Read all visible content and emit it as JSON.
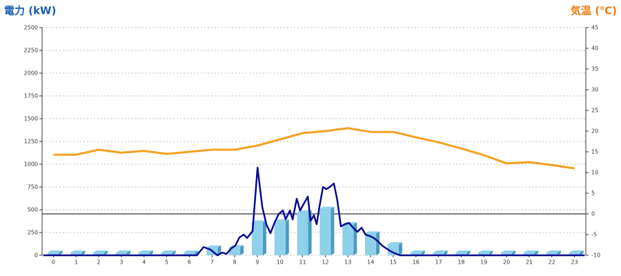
{
  "chart_data": {
    "type": "combo",
    "title_left": "電力 (kW)",
    "title_right": "気温 (℃)",
    "categories": [
      "0",
      "1",
      "2",
      "3",
      "4",
      "5",
      "6",
      "7",
      "8",
      "9",
      "10",
      "11",
      "12",
      "13",
      "14",
      "15",
      "16",
      "17",
      "18",
      "19",
      "20",
      "21",
      "22",
      "23"
    ],
    "xlim": [
      -0.5,
      23.5
    ],
    "ylim": [
      0,
      2500
    ],
    "yticks": [
      0,
      250,
      500,
      750,
      1000,
      1250,
      1500,
      1750,
      2000,
      2250,
      2500
    ],
    "y2lim": [
      -10,
      45
    ],
    "y2ticks": [
      -10,
      -5,
      0,
      5,
      10,
      15,
      20,
      25,
      30,
      35,
      40,
      45
    ],
    "y2_reference": 0,
    "grid": true,
    "series": [
      {
        "type": "bar",
        "color": "#8fd0ea",
        "side_color": "#4a9bbf",
        "values": [
          0,
          0,
          0,
          0,
          0,
          0,
          0,
          85,
          90,
          360,
          370,
          470,
          510,
          340,
          240,
          120,
          0,
          0,
          0,
          0,
          0,
          0,
          0,
          0
        ]
      },
      {
        "type": "line",
        "color": "#0a0a90",
        "x": [
          -0.45,
          6.33,
          6.63,
          6.94,
          7.24,
          7.45,
          7.64,
          7.85,
          8.03,
          8.21,
          8.4,
          8.55,
          8.79,
          9.01,
          9.22,
          9.4,
          9.58,
          9.77,
          9.95,
          10.13,
          10.25,
          10.44,
          10.56,
          10.74,
          10.89,
          11.04,
          11.23,
          11.35,
          11.5,
          11.62,
          11.74,
          11.9,
          12.05,
          12.2,
          12.38,
          12.53,
          12.69,
          12.87,
          13.05,
          13.23,
          13.42,
          13.6,
          13.78,
          13.96,
          14.15,
          14.33,
          14.51,
          14.69,
          14.88,
          15.06,
          15.3,
          23.45
        ],
        "values": [
          0,
          0,
          91,
          61,
          0,
          30,
          15,
          76,
          106,
          197,
          227,
          190,
          265,
          962,
          530,
          341,
          242,
          364,
          455,
          492,
          394,
          492,
          394,
          621,
          492,
          561,
          644,
          379,
          439,
          341,
          530,
          750,
          727,
          750,
          788,
          606,
          318,
          341,
          356,
          303,
          258,
          303,
          227,
          212,
          189,
          152,
          106,
          76,
          45,
          23,
          0,
          0
        ]
      },
      {
        "type": "line",
        "axis": "y2",
        "color": "#f5a020",
        "x": [
          0,
          1,
          2,
          3,
          4,
          5,
          6,
          7,
          8,
          9,
          10,
          11,
          12,
          13,
          14,
          15,
          16,
          17,
          18,
          19,
          20,
          21,
          22,
          23
        ],
        "values": [
          14.3,
          14.3,
          15.5,
          14.8,
          15.2,
          14.5,
          15,
          15.5,
          15.5,
          16.5,
          18,
          19.5,
          20,
          20.7,
          19.8,
          19.8,
          18.5,
          17.3,
          15.8,
          14.2,
          12.2,
          12.5,
          11.8,
          11
        ]
      }
    ]
  }
}
